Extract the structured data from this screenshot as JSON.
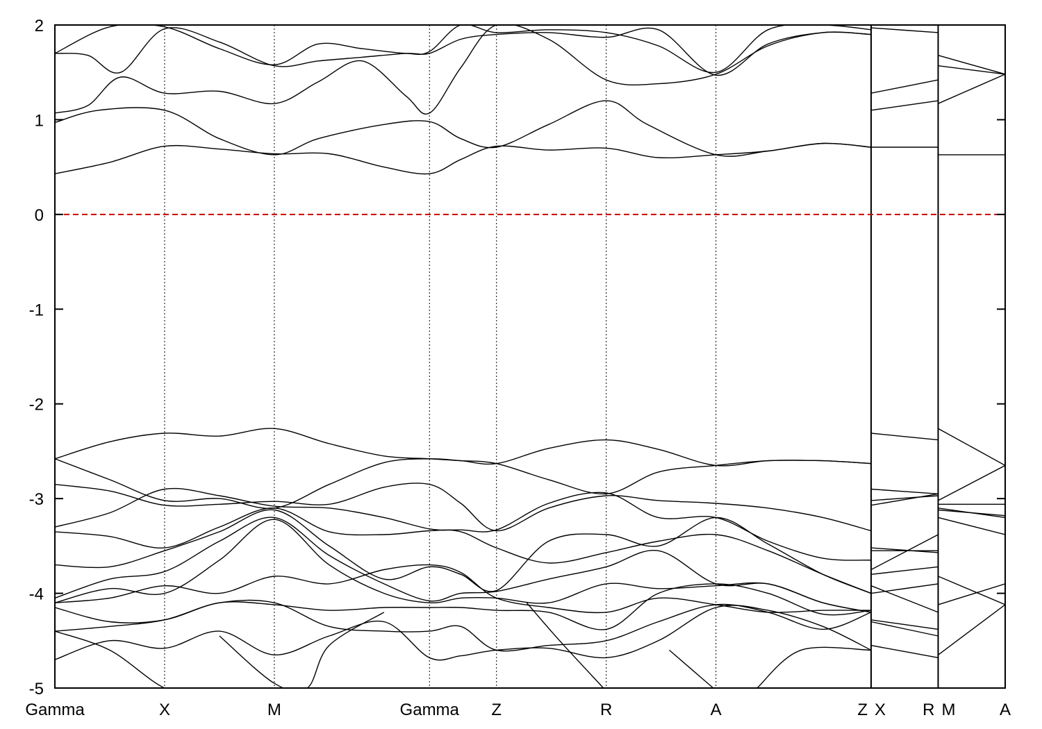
{
  "chart_data": {
    "type": "line",
    "title": "",
    "xlabel": "",
    "ylabel": "",
    "ylim": [
      -5,
      2
    ],
    "y_ticks": [
      -5,
      -4,
      -3,
      -2,
      -1,
      0,
      1,
      2
    ],
    "y_tick_labels": [
      "-5",
      "-4",
      "-3",
      "-2",
      "-1",
      "0",
      "1",
      "2"
    ],
    "grid": "vertical dotted lines at high-symmetry points",
    "fermi_level": {
      "y": 0,
      "color": "#cc0000",
      "style": "dashed"
    },
    "line_color": "#000000",
    "x_points": [
      {
        "label": "Gamma",
        "x": 0.0
      },
      {
        "label": "X",
        "x": 1.0
      },
      {
        "label": "M",
        "x": 2.0
      },
      {
        "label": "Gamma",
        "x": 3.414
      },
      {
        "label": "Z",
        "x": 4.025
      },
      {
        "label": "R",
        "x": 5.025
      },
      {
        "label": "A",
        "x": 6.025
      },
      {
        "label": "Z",
        "x": 7.439
      },
      {
        "label": "X",
        "x": 7.439
      },
      {
        "label": "R",
        "x": 8.05
      },
      {
        "label": "M",
        "x": 8.05
      },
      {
        "label": "A",
        "x": 8.661
      }
    ],
    "x_tick_labels": [
      "Gamma",
      "X",
      "M",
      "Gamma",
      "Z",
      "R",
      "A",
      "Z",
      "X",
      "R",
      "M",
      "A"
    ],
    "segment_breaks": [
      7.439,
      8.05
    ],
    "xlim": [
      0,
      8.661
    ],
    "series": [
      {
        "x": [
          0,
          0.5,
          1,
          1.5,
          2,
          2.5,
          3,
          3.414,
          3.7,
          4.025,
          4.5,
          5.025,
          5.5,
          6.025,
          6.5,
          7,
          7.439
        ],
        "y": [
          0.43,
          0.55,
          0.72,
          0.69,
          0.64,
          0.64,
          0.5,
          0.43,
          0.58,
          0.72,
          0.68,
          0.7,
          0.6,
          0.63,
          0.67,
          0.75,
          0.71
        ]
      },
      {
        "x": [
          0,
          0.4,
          1,
          1.5,
          2,
          2.4,
          3,
          3.414,
          3.7,
          4.025,
          4.5,
          5.025,
          5.4,
          6.025,
          6.5,
          7,
          7.439
        ],
        "y": [
          0.97,
          1.1,
          1.1,
          0.8,
          0.63,
          0.8,
          0.95,
          0.98,
          0.8,
          0.71,
          0.95,
          1.2,
          0.95,
          0.63,
          0.67,
          0.75,
          0.71
        ]
      },
      {
        "x": [
          0,
          0.3,
          0.6,
          1,
          1.5,
          2,
          2.4,
          2.8,
          3.2,
          3.414,
          3.7,
          4.025,
          4.5,
          5.025,
          5.5,
          6.025,
          6.5,
          7,
          7.439
        ],
        "y": [
          1.07,
          1.15,
          1.45,
          1.28,
          1.3,
          1.17,
          1.4,
          1.62,
          1.25,
          1.07,
          1.55,
          2.0,
          1.85,
          1.42,
          1.38,
          1.48,
          1.78,
          1.92,
          1.9
        ]
      },
      {
        "x": [
          0,
          0.3,
          0.6,
          1,
          1.5,
          2,
          2.4,
          2.8,
          3.2,
          3.414,
          3.7,
          4.025,
          4.5,
          5.025,
          5.5,
          6.025,
          6.5,
          7,
          7.439
        ],
        "y": [
          1.7,
          1.68,
          1.5,
          1.96,
          1.82,
          1.57,
          1.62,
          1.66,
          1.7,
          1.7,
          1.85,
          1.9,
          1.92,
          1.87,
          1.95,
          1.47,
          1.8,
          1.92,
          1.9
        ]
      },
      {
        "x": [
          0,
          0.5,
          1,
          1.5,
          2,
          2.4,
          2.8,
          3.2,
          3.414,
          3.7,
          4.025,
          4.5,
          5.025,
          5.5,
          6.025,
          6.5,
          7,
          7.439
        ],
        "y": [
          1.7,
          1.98,
          1.98,
          1.75,
          1.58,
          1.8,
          1.75,
          1.7,
          1.72,
          2.0,
          1.92,
          1.95,
          1.92,
          1.78,
          1.5,
          1.95,
          2.0,
          1.95
        ]
      },
      {
        "x": [
          7.439,
          8.05
        ],
        "y": [
          0.71,
          0.71
        ]
      },
      {
        "x": [
          7.439,
          8.05
        ],
        "y": [
          1.1,
          1.2
        ]
      },
      {
        "x": [
          7.439,
          8.05
        ],
        "y": [
          1.28,
          1.42
        ]
      },
      {
        "x": [
          7.439,
          8.05
        ],
        "y": [
          1.97,
          1.92
        ]
      },
      {
        "x": [
          8.05,
          8.661
        ],
        "y": [
          0.63,
          0.63
        ]
      },
      {
        "x": [
          8.05,
          8.661
        ],
        "y": [
          1.17,
          1.48
        ]
      },
      {
        "x": [
          8.05,
          8.661
        ],
        "y": [
          1.57,
          1.48
        ]
      },
      {
        "x": [
          8.05,
          8.661
        ],
        "y": [
          1.68,
          1.48
        ]
      },
      {
        "x": [
          0,
          0.5,
          1,
          1.5,
          2,
          2.5,
          3,
          3.414,
          3.7,
          4.025,
          4.5,
          5.025,
          5.5,
          6.025,
          6.5,
          7,
          7.439
        ],
        "y": [
          -2.58,
          -2.4,
          -2.31,
          -2.34,
          -2.26,
          -2.42,
          -2.55,
          -2.58,
          -2.6,
          -2.63,
          -2.47,
          -2.38,
          -2.48,
          -2.65,
          -2.6,
          -2.6,
          -2.63
        ]
      },
      {
        "x": [
          0,
          0.5,
          1,
          1.5,
          2,
          2.5,
          3,
          3.414,
          3.7,
          4.025,
          4.5,
          5.025,
          5.5,
          6.025,
          6.5,
          7,
          7.439
        ],
        "y": [
          -2.58,
          -2.8,
          -3.02,
          -3.0,
          -3.1,
          -2.85,
          -2.62,
          -2.58,
          -2.6,
          -2.63,
          -2.8,
          -2.95,
          -2.72,
          -2.65,
          -2.6,
          -2.6,
          -2.63
        ]
      },
      {
        "x": [
          0,
          0.5,
          1,
          1.5,
          2,
          2.5,
          3,
          3.414,
          3.7,
          4.025,
          4.5,
          5.025,
          5.5,
          6.025,
          6.5,
          7,
          7.439
        ],
        "y": [
          -2.85,
          -2.92,
          -3.07,
          -3.06,
          -3.03,
          -3.06,
          -2.88,
          -2.85,
          -3.05,
          -3.34,
          -3.1,
          -2.97,
          -3.02,
          -3.05,
          -3.1,
          -3.2,
          -3.34
        ]
      },
      {
        "x": [
          0,
          0.5,
          1,
          1.5,
          2,
          2.5,
          3,
          3.414,
          3.7,
          4.025,
          4.5,
          5.025,
          5.5,
          6.025,
          6.5,
          7,
          7.439
        ],
        "y": [
          -3.3,
          -3.15,
          -2.9,
          -2.97,
          -3.08,
          -3.1,
          -3.2,
          -3.32,
          -3.33,
          -3.33,
          -3.05,
          -2.94,
          -3.2,
          -3.2,
          -3.45,
          -3.63,
          -3.65
        ]
      },
      {
        "x": [
          0,
          0.5,
          1,
          1.5,
          2,
          2.5,
          3,
          3.414,
          3.7,
          4.025,
          4.5,
          5.025,
          5.5,
          6.025,
          6.5,
          7,
          7.439
        ],
        "y": [
          -3.35,
          -3.4,
          -3.52,
          -3.3,
          -3.1,
          -3.35,
          -3.38,
          -3.34,
          -3.35,
          -3.52,
          -3.68,
          -3.57,
          -3.45,
          -3.38,
          -3.55,
          -3.8,
          -4.0
        ]
      },
      {
        "x": [
          0,
          0.5,
          1,
          1.5,
          2,
          2.5,
          3,
          3.414,
          3.7,
          4.025,
          4.5,
          5.025,
          5.5,
          6.025,
          6.5,
          7,
          7.439
        ],
        "y": [
          -3.7,
          -3.72,
          -3.55,
          -3.35,
          -3.12,
          -3.5,
          -3.85,
          -3.72,
          -3.8,
          -3.97,
          -3.45,
          -3.38,
          -3.5,
          -3.2,
          -3.48,
          -3.8,
          -4.0
        ]
      },
      {
        "x": [
          0,
          0.5,
          1,
          1.5,
          2,
          2.5,
          3,
          3.414,
          3.7,
          4.025,
          4.5,
          5.025,
          5.5,
          6.025,
          6.5,
          7,
          7.439
        ],
        "y": [
          -4.05,
          -3.85,
          -3.77,
          -3.45,
          -3.2,
          -3.6,
          -3.9,
          -4.08,
          -4.0,
          -3.98,
          -3.85,
          -3.72,
          -3.55,
          -3.9,
          -3.9,
          -4.1,
          -4.2
        ]
      },
      {
        "x": [
          0,
          0.5,
          1,
          1.5,
          2,
          2.5,
          3,
          3.414,
          3.7,
          4.025,
          4.5,
          5.025,
          5.5,
          6.025,
          6.5,
          7,
          7.439
        ],
        "y": [
          -4.1,
          -3.95,
          -4.0,
          -3.65,
          -3.22,
          -3.7,
          -4.0,
          -4.1,
          -4.05,
          -4.05,
          -4.1,
          -3.9,
          -3.95,
          -3.92,
          -3.9,
          -4.1,
          -4.2
        ]
      },
      {
        "x": [
          0,
          0.5,
          1,
          1.5,
          2,
          2.5,
          3,
          3.414,
          3.7,
          4.025,
          4.5,
          5.025,
          5.5,
          6.025,
          6.5,
          7,
          7.439
        ],
        "y": [
          -4.1,
          -4.05,
          -3.92,
          -4.0,
          -3.82,
          -3.9,
          -3.75,
          -3.7,
          -3.78,
          -4.05,
          -4.15,
          -4.2,
          -4.05,
          -4.12,
          -4.2,
          -4.18,
          -4.18
        ]
      },
      {
        "x": [
          0,
          0.5,
          1,
          1.5,
          2,
          2.5,
          3,
          3.414,
          3.7,
          4.025,
          4.5,
          5.025,
          5.5,
          6.025,
          6.5,
          7,
          7.439
        ],
        "y": [
          -4.15,
          -4.3,
          -4.28,
          -4.1,
          -4.12,
          -4.18,
          -4.15,
          -4.15,
          -4.15,
          -4.18,
          -4.2,
          -4.38,
          -4.0,
          -3.9,
          -4.0,
          -4.22,
          -4.18
        ]
      },
      {
        "x": [
          0,
          0.5,
          1,
          1.5,
          2,
          2.5,
          3,
          3.414,
          3.7,
          4.025,
          4.5,
          5.025,
          5.5,
          6.025,
          6.5,
          7,
          7.439
        ],
        "y": [
          -4.4,
          -4.35,
          -4.28,
          -4.1,
          -4.1,
          -4.35,
          -4.4,
          -4.4,
          -4.35,
          -4.6,
          -4.55,
          -4.5,
          -4.3,
          -4.12,
          -4.2,
          -4.38,
          -4.2
        ]
      },
      {
        "x": [
          0,
          0.5,
          1,
          1.5,
          2,
          2.5,
          3,
          3.414,
          3.7,
          4.025,
          4.5,
          5.025,
          5.5,
          6.025,
          6.5,
          7,
          7.439
        ],
        "y": [
          -4.7,
          -4.5,
          -4.58,
          -4.4,
          -4.65,
          -4.45,
          -4.3,
          -4.68,
          -4.66,
          -4.6,
          -4.58,
          -4.68,
          -4.5,
          -4.15,
          -4.18,
          -4.35,
          -4.6
        ]
      },
      {
        "x": [
          0,
          0.5,
          1,
          1.3
        ],
        "y": [
          -4.4,
          -4.6,
          -5.0,
          -5.0
        ]
      },
      {
        "x": [
          1.5,
          2,
          2.3,
          2.5,
          3.0
        ],
        "y": [
          -4.45,
          -4.95,
          -5.0,
          -4.55,
          -4.2
        ]
      },
      {
        "x": [
          4.3,
          4.6,
          5.0
        ],
        "y": [
          -4.1,
          -4.5,
          -5.0
        ]
      },
      {
        "x": [
          5.6,
          6.0
        ],
        "y": [
          -4.6,
          -5.0
        ]
      },
      {
        "x": [
          6.4,
          6.8,
          7.439
        ],
        "y": [
          -5.0,
          -4.6,
          -4.6
        ]
      },
      {
        "x": [
          7.439,
          8.05
        ],
        "y": [
          -2.31,
          -2.38
        ]
      },
      {
        "x": [
          7.439,
          8.05
        ],
        "y": [
          -2.9,
          -2.95
        ]
      },
      {
        "x": [
          7.439,
          8.05
        ],
        "y": [
          -3.02,
          -2.97
        ]
      },
      {
        "x": [
          7.439,
          8.05
        ],
        "y": [
          -3.07,
          -2.95
        ]
      },
      {
        "x": [
          7.439,
          8.05
        ],
        "y": [
          -3.52,
          -3.57
        ]
      },
      {
        "x": [
          7.439,
          8.05
        ],
        "y": [
          -3.55,
          -3.55
        ]
      },
      {
        "x": [
          7.439,
          8.05
        ],
        "y": [
          -3.75,
          -3.38
        ]
      },
      {
        "x": [
          7.439,
          8.05
        ],
        "y": [
          -3.8,
          -3.72
        ]
      },
      {
        "x": [
          7.439,
          8.05
        ],
        "y": [
          -3.92,
          -4.2
        ]
      },
      {
        "x": [
          7.439,
          8.05
        ],
        "y": [
          -4.0,
          -3.9
        ]
      },
      {
        "x": [
          7.439,
          8.05
        ],
        "y": [
          -4.28,
          -4.38
        ]
      },
      {
        "x": [
          7.439,
          8.05
        ],
        "y": [
          -4.3,
          -4.45
        ]
      },
      {
        "x": [
          7.439,
          8.05
        ],
        "y": [
          -4.55,
          -4.68
        ]
      },
      {
        "x": [
          8.05,
          8.661
        ],
        "y": [
          -2.26,
          -2.65
        ]
      },
      {
        "x": [
          8.05,
          8.661
        ],
        "y": [
          -3.02,
          -2.65
        ]
      },
      {
        "x": [
          8.05,
          8.661
        ],
        "y": [
          -3.06,
          -3.06
        ]
      },
      {
        "x": [
          8.05,
          8.661
        ],
        "y": [
          -3.1,
          -3.2
        ]
      },
      {
        "x": [
          8.05,
          8.661
        ],
        "y": [
          -3.12,
          -3.18
        ]
      },
      {
        "x": [
          8.05,
          8.661
        ],
        "y": [
          -3.2,
          -3.38
        ]
      },
      {
        "x": [
          8.05,
          8.661
        ],
        "y": [
          -3.82,
          -4.12
        ]
      },
      {
        "x": [
          8.05,
          8.661
        ],
        "y": [
          -4.12,
          -3.9
        ]
      },
      {
        "x": [
          8.05,
          8.661
        ],
        "y": [
          -4.65,
          -4.12
        ]
      }
    ]
  }
}
